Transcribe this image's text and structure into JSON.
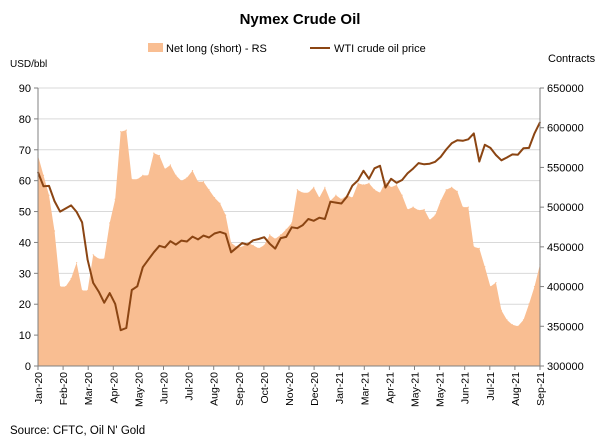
{
  "chart_data": {
    "type": "area",
    "title": "Nymex Crude Oil",
    "source": "Source: CFTC, Oil N' Gold",
    "left_axis": {
      "unit": "USD/bbl",
      "ylim": [
        0,
        90
      ],
      "ticks": [
        "0",
        "10",
        "20",
        "30",
        "40",
        "50",
        "60",
        "70",
        "80",
        "90"
      ]
    },
    "right_axis": {
      "unit": "Contracts",
      "ylim": [
        300000,
        650000
      ],
      "ticks": [
        "300000",
        "350000",
        "400000",
        "450000",
        "500000",
        "550000",
        "600000",
        "650000"
      ]
    },
    "x_tick_labels": [
      "Jan-20",
      "Feb-20",
      "Mar-20",
      "Apr-20",
      "May-20",
      "Jun-20",
      "Jul-20",
      "Aug-20",
      "Sep-20",
      "Oct-20",
      "Nov-20",
      "Dec-20",
      "Jan-21",
      "Mar-21",
      "Apr-21",
      "May-21",
      "May-21",
      "Jun-21",
      "Jul-21",
      "Aug-21",
      "Sep-21"
    ],
    "x_range": [
      "2020-01-07",
      "2021-10-05"
    ],
    "grid": true,
    "legend_position": "top",
    "series": [
      {
        "name": "Net long (short) - RS",
        "kind": "area",
        "axis": "right",
        "color": "#f9be92",
        "points": [
          [
            "2020-01-07",
            565000
          ],
          [
            "2020-01-14",
            540000
          ],
          [
            "2020-01-21",
            515000
          ],
          [
            "2020-01-28",
            470000
          ],
          [
            "2020-02-04",
            400000
          ],
          [
            "2020-02-11",
            400000
          ],
          [
            "2020-02-18",
            410000
          ],
          [
            "2020-02-25",
            430000
          ],
          [
            "2020-03-03",
            395000
          ],
          [
            "2020-03-10",
            395000
          ],
          [
            "2020-03-17",
            440000
          ],
          [
            "2020-03-24",
            435000
          ],
          [
            "2020-03-31",
            435000
          ],
          [
            "2020-04-07",
            480000
          ],
          [
            "2020-04-14",
            510000
          ],
          [
            "2020-04-21",
            595000
          ],
          [
            "2020-04-28",
            597000
          ],
          [
            "2020-05-05",
            535000
          ],
          [
            "2020-05-12",
            535000
          ],
          [
            "2020-05-19",
            540000
          ],
          [
            "2020-05-26",
            540000
          ],
          [
            "2020-06-02",
            568000
          ],
          [
            "2020-06-09",
            565000
          ],
          [
            "2020-06-16",
            548000
          ],
          [
            "2020-06-23",
            553000
          ],
          [
            "2020-06-30",
            540000
          ],
          [
            "2020-07-07",
            533000
          ],
          [
            "2020-07-14",
            537000
          ],
          [
            "2020-07-21",
            546000
          ],
          [
            "2020-07-28",
            532000
          ],
          [
            "2020-08-04",
            532000
          ],
          [
            "2020-08-11",
            522000
          ],
          [
            "2020-08-18",
            512000
          ],
          [
            "2020-08-25",
            505000
          ],
          [
            "2020-09-01",
            490000
          ],
          [
            "2020-09-08",
            455000
          ],
          [
            "2020-09-15",
            450000
          ],
          [
            "2020-09-22",
            450000
          ],
          [
            "2020-09-29",
            455000
          ],
          [
            "2020-10-06",
            452000
          ],
          [
            "2020-10-13",
            448000
          ],
          [
            "2020-10-20",
            452000
          ],
          [
            "2020-10-27",
            465000
          ],
          [
            "2020-11-03",
            460000
          ],
          [
            "2020-11-10",
            465000
          ],
          [
            "2020-11-17",
            472000
          ],
          [
            "2020-11-24",
            480000
          ],
          [
            "2020-12-01",
            522000
          ],
          [
            "2020-12-08",
            518000
          ],
          [
            "2020-12-15",
            518000
          ],
          [
            "2020-12-22",
            525000
          ],
          [
            "2020-12-29",
            512000
          ],
          [
            "2021-01-05",
            525000
          ],
          [
            "2021-01-12",
            508000
          ],
          [
            "2021-01-19",
            515000
          ],
          [
            "2021-01-26",
            510000
          ],
          [
            "2021-02-02",
            515000
          ],
          [
            "2021-02-09",
            512000
          ],
          [
            "2021-02-16",
            530000
          ],
          [
            "2021-02-23",
            528000
          ],
          [
            "2021-03-02",
            530000
          ],
          [
            "2021-03-09",
            522000
          ],
          [
            "2021-03-16",
            518000
          ],
          [
            "2021-03-23",
            532000
          ],
          [
            "2021-03-30",
            525000
          ],
          [
            "2021-04-06",
            528000
          ],
          [
            "2021-04-13",
            515000
          ],
          [
            "2021-04-20",
            497000
          ],
          [
            "2021-04-27",
            500000
          ],
          [
            "2021-05-04",
            496000
          ],
          [
            "2021-05-11",
            497000
          ],
          [
            "2021-05-18",
            484000
          ],
          [
            "2021-05-25",
            490000
          ],
          [
            "2021-06-01",
            508000
          ],
          [
            "2021-06-08",
            522000
          ],
          [
            "2021-06-15",
            525000
          ],
          [
            "2021-06-22",
            520000
          ],
          [
            "2021-06-29",
            500000
          ],
          [
            "2021-07-06",
            500000
          ],
          [
            "2021-07-13",
            450000
          ],
          [
            "2021-07-20",
            448000
          ],
          [
            "2021-07-27",
            425000
          ],
          [
            "2021-08-03",
            400000
          ],
          [
            "2021-08-10",
            405000
          ],
          [
            "2021-08-17",
            370000
          ],
          [
            "2021-08-24",
            358000
          ],
          [
            "2021-08-31",
            352000
          ],
          [
            "2021-09-07",
            350000
          ],
          [
            "2021-09-14",
            358000
          ],
          [
            "2021-09-21",
            378000
          ],
          [
            "2021-09-28",
            400000
          ],
          [
            "2021-10-05",
            428000
          ]
        ]
      },
      {
        "name": "WTI crude oil price",
        "kind": "line",
        "axis": "left",
        "color": "#8b4513",
        "points": [
          [
            "2020-01-07",
            62.7
          ],
          [
            "2020-01-14",
            58.2
          ],
          [
            "2020-01-21",
            58.3
          ],
          [
            "2020-01-28",
            53.4
          ],
          [
            "2020-02-04",
            50.0
          ],
          [
            "2020-02-11",
            51.0
          ],
          [
            "2020-02-18",
            52.0
          ],
          [
            "2020-02-25",
            49.9
          ],
          [
            "2020-03-03",
            46.5
          ],
          [
            "2020-03-10",
            34.4
          ],
          [
            "2020-03-17",
            26.9
          ],
          [
            "2020-03-24",
            24.1
          ],
          [
            "2020-03-31",
            20.5
          ],
          [
            "2020-04-07",
            23.6
          ],
          [
            "2020-04-14",
            20.1
          ],
          [
            "2020-04-21",
            11.6
          ],
          [
            "2020-04-28",
            12.3
          ],
          [
            "2020-05-05",
            24.6
          ],
          [
            "2020-05-12",
            25.8
          ],
          [
            "2020-05-19",
            32.0
          ],
          [
            "2020-05-26",
            34.4
          ],
          [
            "2020-06-02",
            36.8
          ],
          [
            "2020-06-09",
            38.9
          ],
          [
            "2020-06-16",
            38.4
          ],
          [
            "2020-06-23",
            40.4
          ],
          [
            "2020-06-30",
            39.3
          ],
          [
            "2020-07-07",
            40.6
          ],
          [
            "2020-07-14",
            40.3
          ],
          [
            "2020-07-21",
            41.9
          ],
          [
            "2020-07-28",
            41.0
          ],
          [
            "2020-08-04",
            42.2
          ],
          [
            "2020-08-11",
            41.6
          ],
          [
            "2020-08-18",
            42.9
          ],
          [
            "2020-08-25",
            43.4
          ],
          [
            "2020-09-01",
            42.8
          ],
          [
            "2020-09-08",
            36.8
          ],
          [
            "2020-09-15",
            38.3
          ],
          [
            "2020-09-22",
            39.8
          ],
          [
            "2020-09-29",
            39.3
          ],
          [
            "2020-10-06",
            40.7
          ],
          [
            "2020-10-13",
            41.1
          ],
          [
            "2020-10-20",
            41.7
          ],
          [
            "2020-10-27",
            39.6
          ],
          [
            "2020-11-03",
            38.0
          ],
          [
            "2020-11-10",
            41.4
          ],
          [
            "2020-11-17",
            41.8
          ],
          [
            "2020-11-24",
            44.9
          ],
          [
            "2020-12-01",
            44.6
          ],
          [
            "2020-12-08",
            45.6
          ],
          [
            "2020-12-15",
            47.6
          ],
          [
            "2020-12-22",
            47.0
          ],
          [
            "2020-12-29",
            48.0
          ],
          [
            "2021-01-05",
            47.6
          ],
          [
            "2021-01-12",
            53.2
          ],
          [
            "2021-01-19",
            52.9
          ],
          [
            "2021-01-26",
            52.6
          ],
          [
            "2021-02-02",
            54.8
          ],
          [
            "2021-02-09",
            58.4
          ],
          [
            "2021-02-16",
            60.1
          ],
          [
            "2021-02-23",
            63.2
          ],
          [
            "2021-03-02",
            60.6
          ],
          [
            "2021-03-09",
            64.0
          ],
          [
            "2021-03-16",
            64.8
          ],
          [
            "2021-03-23",
            57.8
          ],
          [
            "2021-03-30",
            60.6
          ],
          [
            "2021-04-06",
            59.3
          ],
          [
            "2021-04-13",
            60.2
          ],
          [
            "2021-04-20",
            62.4
          ],
          [
            "2021-04-27",
            63.9
          ],
          [
            "2021-05-04",
            65.7
          ],
          [
            "2021-05-11",
            65.3
          ],
          [
            "2021-05-18",
            65.5
          ],
          [
            "2021-05-25",
            66.1
          ],
          [
            "2021-06-01",
            67.7
          ],
          [
            "2021-06-08",
            70.1
          ],
          [
            "2021-06-15",
            72.1
          ],
          [
            "2021-06-22",
            73.1
          ],
          [
            "2021-06-29",
            72.9
          ],
          [
            "2021-07-06",
            73.4
          ],
          [
            "2021-07-13",
            75.3
          ],
          [
            "2021-07-20",
            66.2
          ],
          [
            "2021-07-27",
            71.6
          ],
          [
            "2021-08-03",
            70.6
          ],
          [
            "2021-08-10",
            68.3
          ],
          [
            "2021-08-17",
            66.6
          ],
          [
            "2021-08-24",
            67.5
          ],
          [
            "2021-08-31",
            68.5
          ],
          [
            "2021-09-07",
            68.4
          ],
          [
            "2021-09-14",
            70.5
          ],
          [
            "2021-09-21",
            70.6
          ],
          [
            "2021-09-28",
            75.3
          ],
          [
            "2021-10-05",
            78.9
          ]
        ]
      }
    ]
  }
}
